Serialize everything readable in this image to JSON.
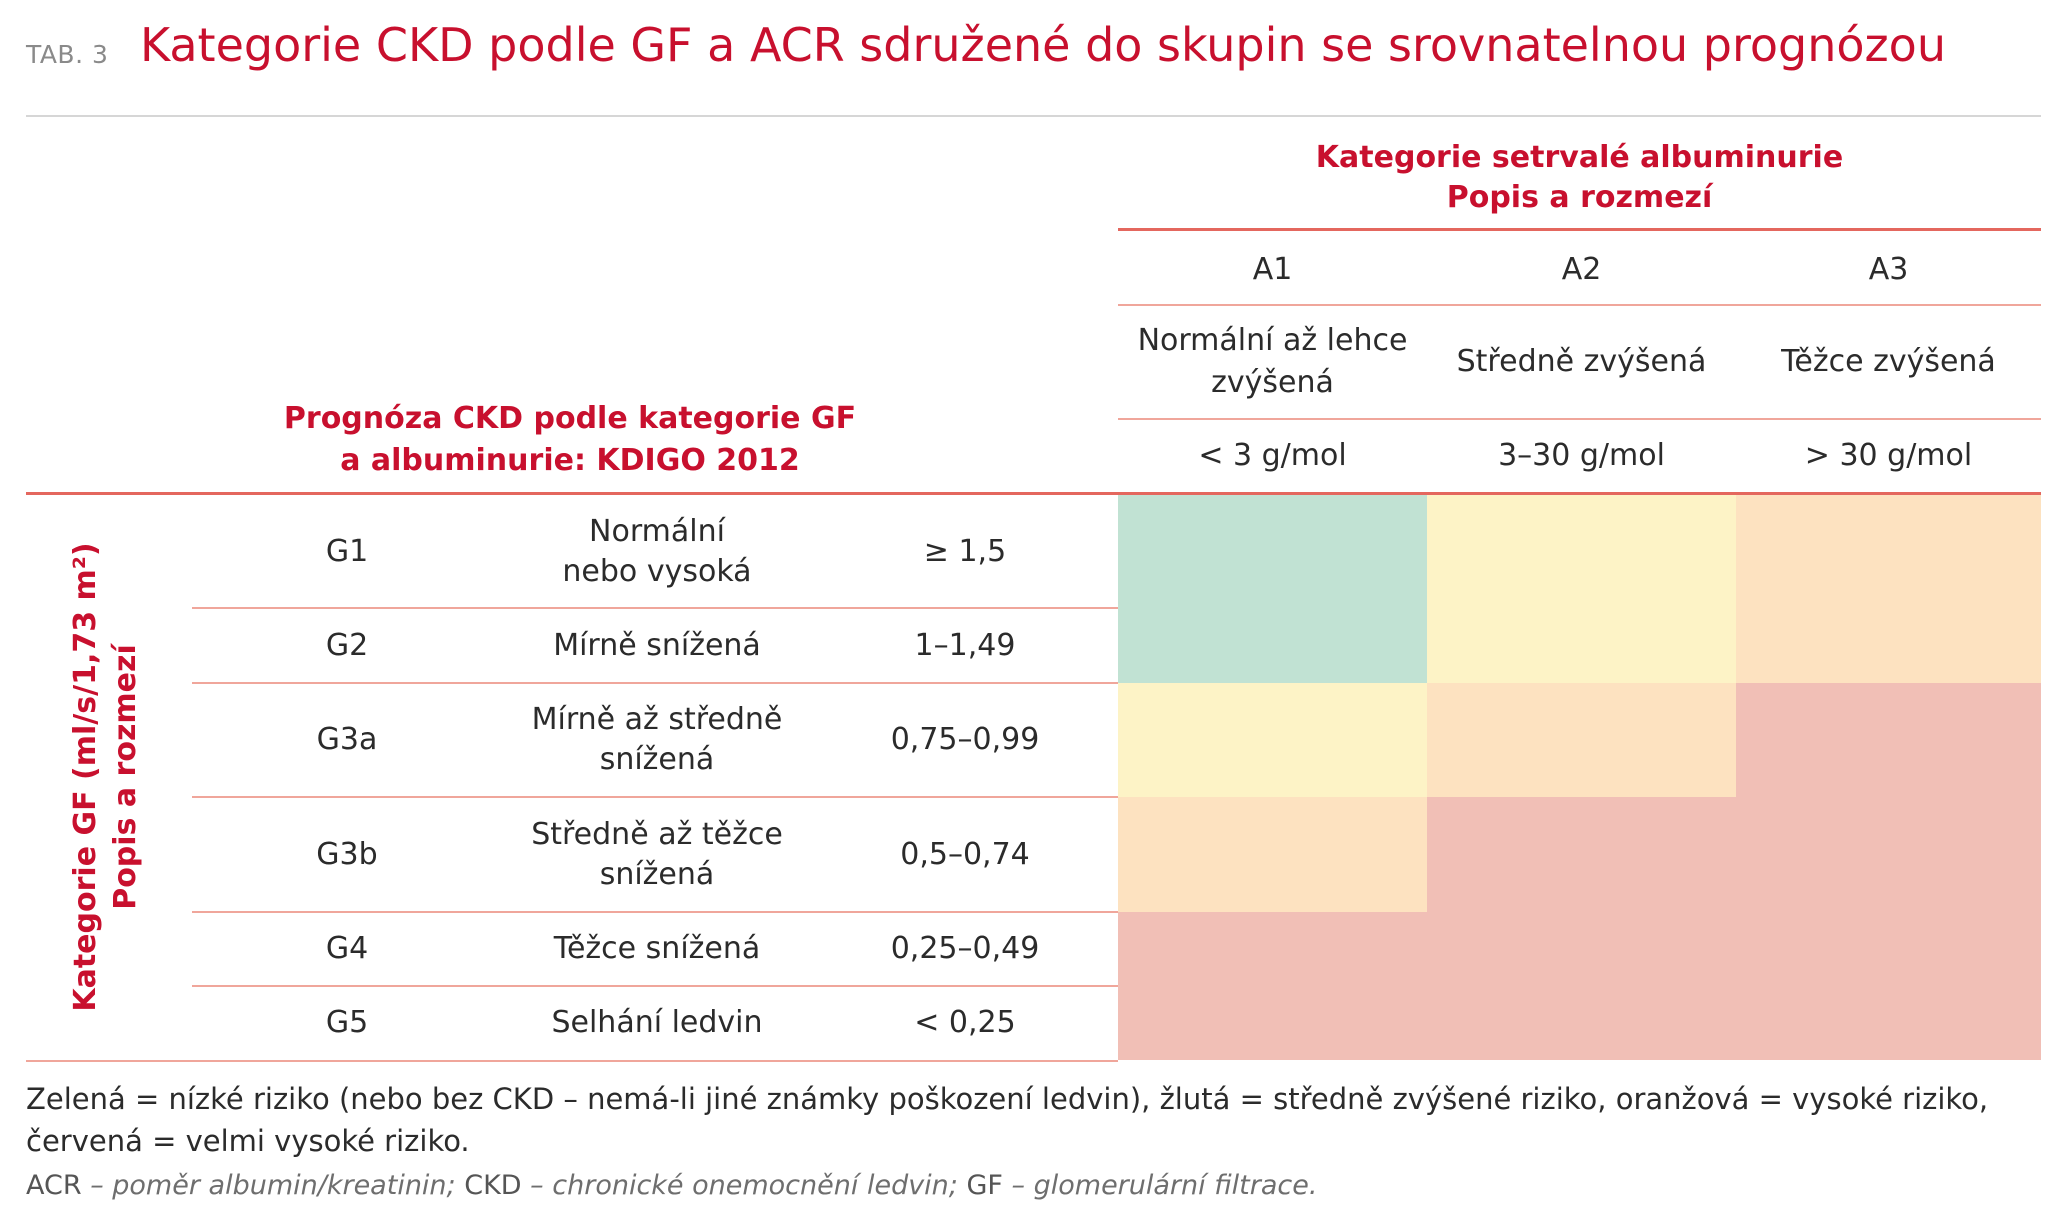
{
  "header": {
    "tab_label": "TAB. 3",
    "title": "Kategorie CKD podle GF a ACR sdružené do skupin se srovnatelnou prognózou"
  },
  "albuminuria_header": {
    "line1": "Kategorie setrvalé albuminurie",
    "line2": "Popis a rozmezí"
  },
  "prognosis_header": {
    "line1": "Prognóza CKD podle kategorie GF",
    "line2": "a albuminurie: KDIGO 2012"
  },
  "albuminuria_columns": [
    {
      "code": "A1",
      "desc_line1": "Normální až lehce",
      "desc_line2": "zvýšená",
      "range": "< 3 g/mol"
    },
    {
      "code": "A2",
      "desc_line1": "Středně zvýšená",
      "desc_line2": "",
      "range": "3–30 g/mol"
    },
    {
      "code": "A3",
      "desc_line1": "Těžce zvýšená",
      "desc_line2": "",
      "range": "> 30 g/mol"
    }
  ],
  "gf_axis_label": {
    "line1": "Kategorie GF (ml/s/1,73 m²)",
    "line2": "Popis a rozmezí"
  },
  "gf_rows": [
    {
      "code": "G1",
      "desc_line1": "Normální",
      "desc_line2": "nebo vysoká",
      "range": "≥ 1,5",
      "risk": [
        "green",
        "yellow",
        "orange"
      ]
    },
    {
      "code": "G2",
      "desc_line1": "Mírně snížená",
      "desc_line2": "",
      "range": "1–1,49",
      "risk": [
        "green",
        "yellow",
        "orange"
      ]
    },
    {
      "code": "G3a",
      "desc_line1": "Mírně až středně",
      "desc_line2": "snížená",
      "range": "0,75–0,99",
      "risk": [
        "yellow",
        "orange",
        "red"
      ]
    },
    {
      "code": "G3b",
      "desc_line1": "Středně až těžce",
      "desc_line2": "snížená",
      "range": "0,5–0,74",
      "risk": [
        "orange",
        "red",
        "red"
      ]
    },
    {
      "code": "G4",
      "desc_line1": "Těžce snížená",
      "desc_line2": "",
      "range": "0,25–0,49",
      "risk": [
        "red",
        "red",
        "red"
      ]
    },
    {
      "code": "G5",
      "desc_line1": "Selhání ledvin",
      "desc_line2": "",
      "range": "< 0,25",
      "risk": [
        "red",
        "red",
        "red"
      ]
    }
  ],
  "risk_colors": {
    "green": "#c1e2d3",
    "yellow": "#fdf3c6",
    "orange": "#fde2c0",
    "red": "#f1bfb6"
  },
  "legend": {
    "line1": "Zelená = nízké riziko (nebo bez CKD – nemá-li jiné známky poškození ledvin), žlutá = středně zvýšené riziko, oranžová = vysoké riziko,",
    "line2": "červená = velmi vysoké riziko."
  },
  "abbreviations": [
    {
      "abbr": "ACR",
      "text": " – poměr albumin/kreatinin; "
    },
    {
      "abbr": "CKD",
      "text": " – chronické onemocnění ledvin; "
    },
    {
      "abbr": "GF",
      "text": " – glomerulární filtrace."
    }
  ]
}
